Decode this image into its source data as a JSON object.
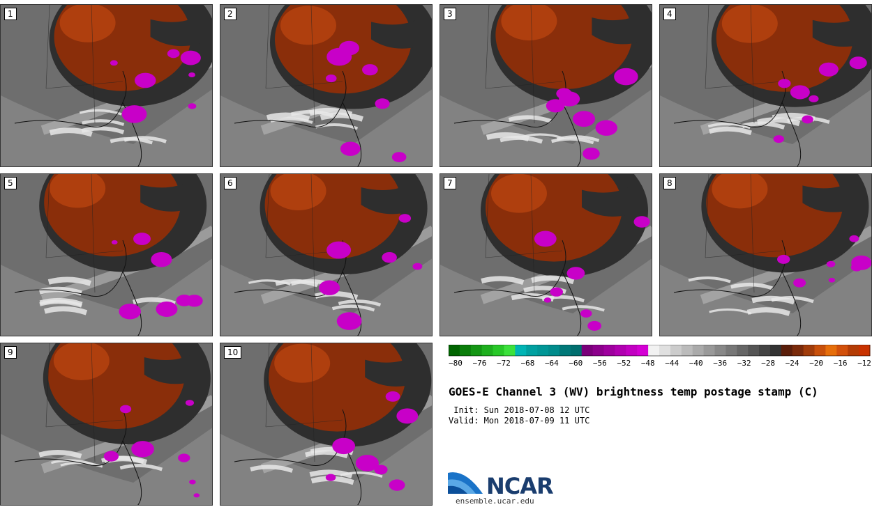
{
  "panels": [
    {
      "label": "1"
    },
    {
      "label": "2"
    },
    {
      "label": "3"
    },
    {
      "label": "4"
    },
    {
      "label": "5"
    },
    {
      "label": "6"
    },
    {
      "label": "7"
    },
    {
      "label": "8"
    },
    {
      "label": "9"
    },
    {
      "label": "10"
    }
  ],
  "colorbar": {
    "colors": [
      "#006400",
      "#0a7d0a",
      "#149614",
      "#1eaf1e",
      "#28c828",
      "#3ce13c",
      "#00b4b4",
      "#00a0a0",
      "#009696",
      "#008c8c",
      "#007878",
      "#006e6e",
      "#7a007a",
      "#8c008c",
      "#9e009e",
      "#b000b0",
      "#c200c2",
      "#d400d4",
      "#f2f2f2",
      "#e0e0e0",
      "#cccccc",
      "#bbbbbb",
      "#aaaaaa",
      "#999999",
      "#888888",
      "#777777",
      "#666666",
      "#555555",
      "#444444",
      "#333333",
      "#5a1e0a",
      "#7a2a0a",
      "#a03c0a",
      "#c8500a",
      "#e66e0a",
      "#d2500a",
      "#b43c05",
      "#c83200"
    ],
    "tick_labels": [
      "−80",
      "−76",
      "−72",
      "−68",
      "−64",
      "−60",
      "−56",
      "−52",
      "−48",
      "−44",
      "−40",
      "−36",
      "−32",
      "−28",
      "−24",
      "−20",
      "−16",
      "−12"
    ]
  },
  "title": "GOES-E Channel 3 (WV) brightness temp postage stamp (C)",
  "init": " Init: Sun 2018-07-08 12 UTC",
  "valid": "Valid: Mon 2018-07-09 11 UTC",
  "logo": {
    "text": "NCAR",
    "url": "ensemble.ucar.edu"
  }
}
